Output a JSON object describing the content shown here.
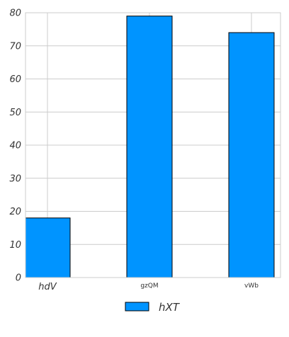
{
  "chart_data": {
    "type": "bar",
    "categories": [
      "hdV",
      "gzQM",
      "vWb"
    ],
    "series": [
      {
        "name": "hXT",
        "values": [
          18,
          79,
          74
        ]
      }
    ],
    "ylim": [
      0,
      80
    ],
    "yticks": [
      0,
      10,
      20,
      30,
      40,
      50,
      60,
      70,
      80
    ],
    "grid": true,
    "legend": "bottom-center",
    "colors": {
      "bar_fill": "#0094ff",
      "bar_stroke": "#000000",
      "grid": "#cccccc",
      "axis_frame": "#cccccc",
      "text": "#333333"
    }
  }
}
